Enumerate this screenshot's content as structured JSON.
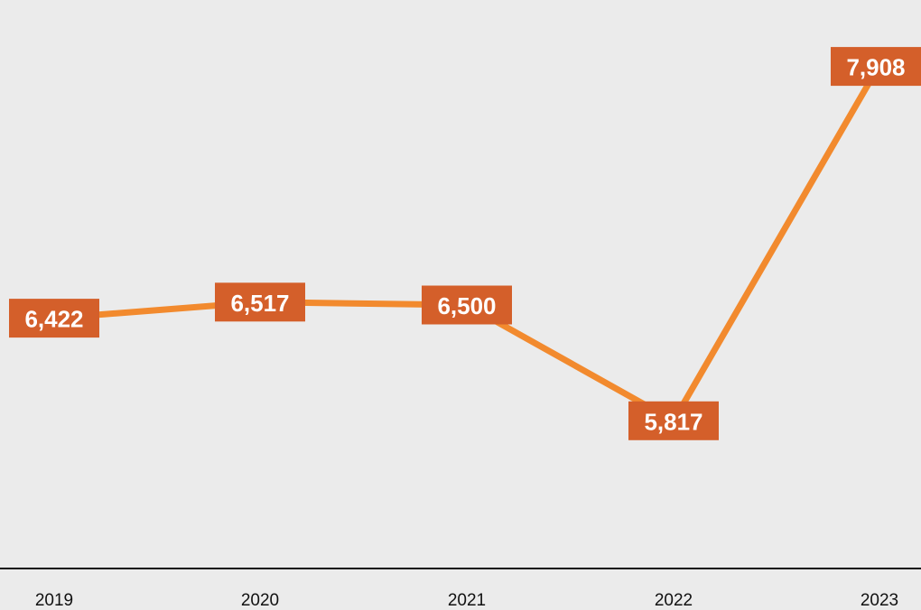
{
  "chart_data": {
    "type": "line",
    "x": [
      "2019",
      "2020",
      "2021",
      "2022",
      "2023"
    ],
    "series": [
      {
        "values": [
          6422,
          6517,
          6500,
          5817,
          7908
        ],
        "labels": [
          "6,422",
          "6,517",
          "6,500",
          "5,817",
          "7,908"
        ]
      }
    ],
    "ylim": [
      4700,
      8300
    ],
    "grid": false,
    "legend": "none",
    "line_color": "#f28a2e",
    "label_bg_color": "#d45f2a",
    "label_text_color": "#ffffff",
    "axis_color": "#111111"
  }
}
